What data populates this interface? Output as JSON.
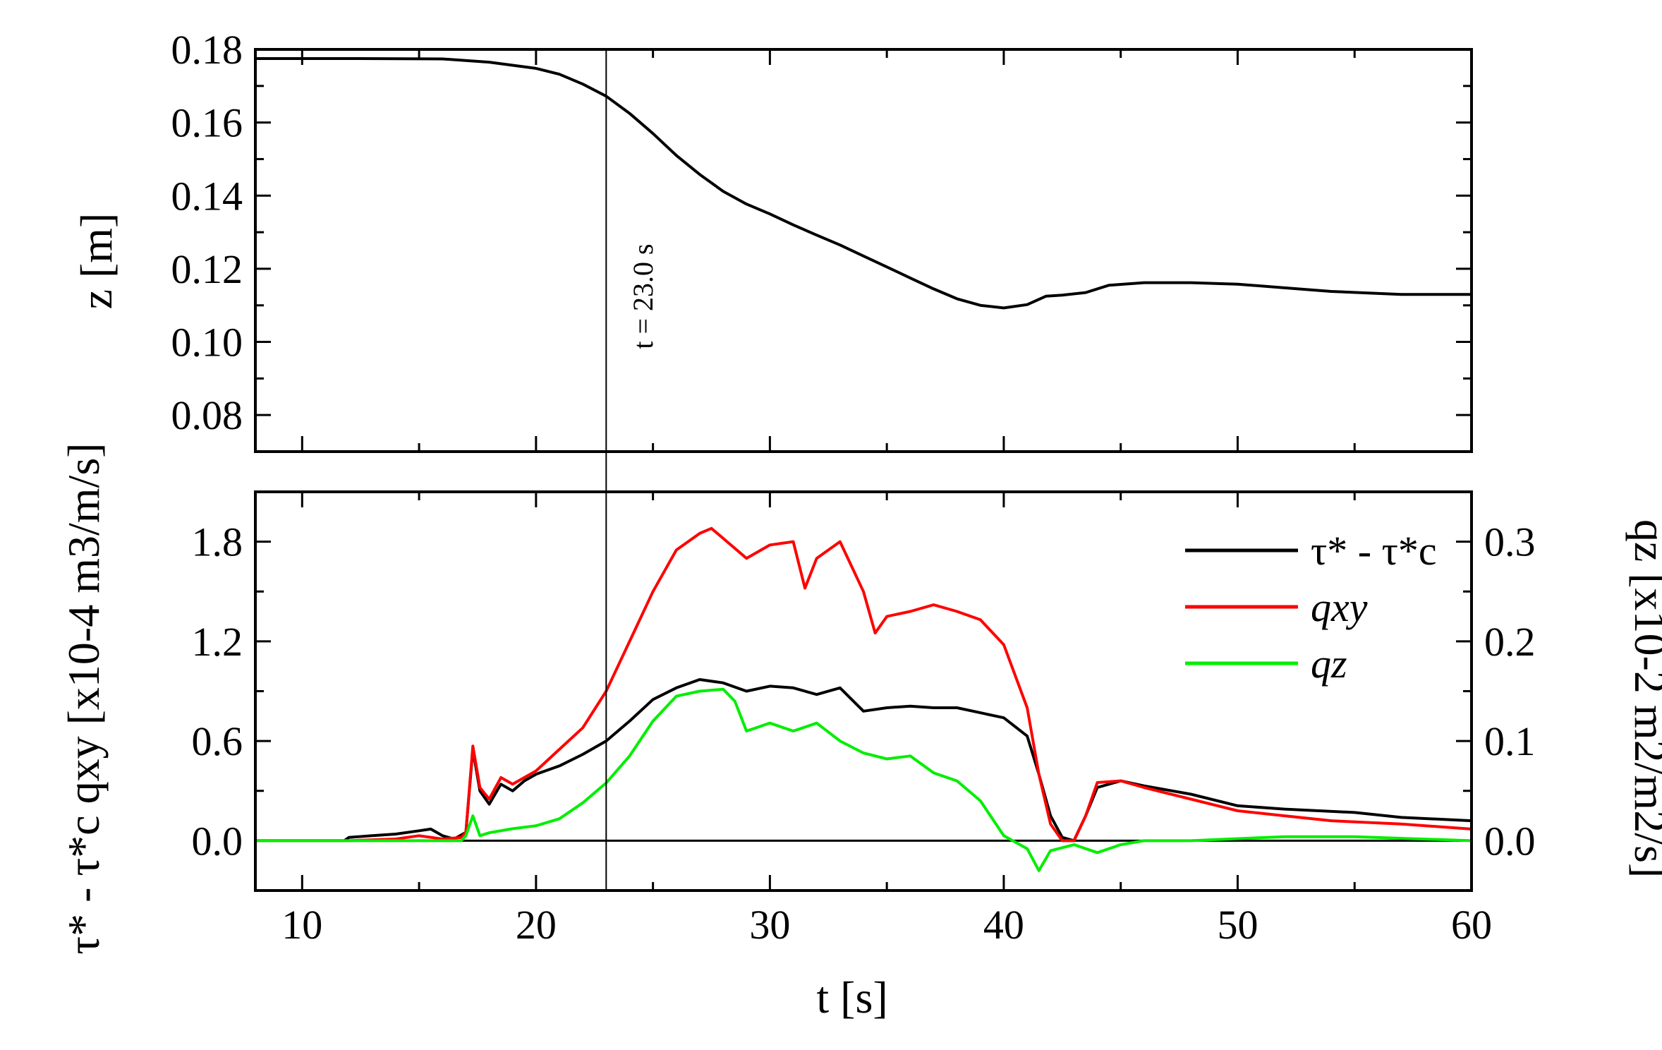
{
  "chart_data": [
    {
      "panel": "top",
      "type": "line",
      "ylabel": "z [m]",
      "ylim": [
        0.07,
        0.18
      ],
      "yticks": [
        "0.08",
        "0.10",
        "0.12",
        "0.14",
        "0.16",
        "0.18"
      ],
      "xlim": [
        8,
        60
      ],
      "annotation": {
        "text": "t = 23.0 s",
        "x": 23.0
      },
      "series": [
        {
          "name": "z",
          "color": "#000000",
          "points": [
            [
              8,
              0.1775
            ],
            [
              12,
              0.1775
            ],
            [
              16,
              0.1774
            ],
            [
              18,
              0.1765
            ],
            [
              20,
              0.1748
            ],
            [
              21,
              0.1732
            ],
            [
              22,
              0.1705
            ],
            [
              23,
              0.1672
            ],
            [
              24,
              0.1625
            ],
            [
              25,
              0.157
            ],
            [
              26,
              0.151
            ],
            [
              27,
              0.1458
            ],
            [
              28,
              0.1412
            ],
            [
              29,
              0.1377
            ],
            [
              30,
              0.135
            ],
            [
              31,
              0.132
            ],
            [
              32,
              0.1292
            ],
            [
              33,
              0.1265
            ],
            [
              34,
              0.1235
            ],
            [
              35,
              0.1205
            ],
            [
              36,
              0.1175
            ],
            [
              37,
              0.1145
            ],
            [
              38,
              0.1118
            ],
            [
              39,
              0.11
            ],
            [
              40,
              0.1093
            ],
            [
              41,
              0.1102
            ],
            [
              41.8,
              0.1125
            ],
            [
              42.5,
              0.1128
            ],
            [
              43.5,
              0.1135
            ],
            [
              44.5,
              0.1155
            ],
            [
              46,
              0.1162
            ],
            [
              48,
              0.1162
            ],
            [
              50,
              0.1158
            ],
            [
              52,
              0.1148
            ],
            [
              54,
              0.1138
            ],
            [
              57,
              0.113
            ],
            [
              60,
              0.113
            ]
          ]
        }
      ]
    },
    {
      "panel": "bottom",
      "type": "line",
      "xlabel": "t [s]",
      "xticks": [
        "10",
        "20",
        "30",
        "40",
        "50",
        "60"
      ],
      "xlim": [
        8,
        60
      ],
      "ylabel_left": "τ* - τ*c  qxy [x10-4 m3/m/s]",
      "ylim_left": [
        -0.3,
        2.1
      ],
      "yticks_left": [
        "0.0",
        "0.6",
        "1.2",
        "1.8"
      ],
      "ylabel_right": "qz [x10-2 m2/m2/s]",
      "ylim_right": [
        -0.05,
        0.35
      ],
      "yticks_right": [
        "0.0",
        "0.1",
        "0.2",
        "0.3"
      ],
      "legend": [
        {
          "label": "τ* - τ*c",
          "color": "#000000"
        },
        {
          "label": "qxy",
          "color": "#ff0000"
        },
        {
          "label": "qz",
          "color": "#00ee00"
        }
      ],
      "series": [
        {
          "name": "τ* - τ*c",
          "axis": "left",
          "color": "#000000",
          "points": [
            [
              8,
              0
            ],
            [
              11.8,
              0
            ],
            [
              12,
              0.02
            ],
            [
              13,
              0.03
            ],
            [
              14,
              0.04
            ],
            [
              15,
              0.06
            ],
            [
              15.5,
              0.07
            ],
            [
              16,
              0.03
            ],
            [
              16.5,
              0.01
            ],
            [
              17,
              0.05
            ],
            [
              17.3,
              0.55
            ],
            [
              17.6,
              0.3
            ],
            [
              18,
              0.22
            ],
            [
              18.5,
              0.34
            ],
            [
              19,
              0.3
            ],
            [
              19.5,
              0.36
            ],
            [
              20,
              0.4
            ],
            [
              21,
              0.45
            ],
            [
              22,
              0.52
            ],
            [
              23,
              0.6
            ],
            [
              24,
              0.72
            ],
            [
              25,
              0.85
            ],
            [
              26,
              0.92
            ],
            [
              27,
              0.97
            ],
            [
              28,
              0.95
            ],
            [
              29,
              0.9
            ],
            [
              30,
              0.93
            ],
            [
              31,
              0.92
            ],
            [
              32,
              0.88
            ],
            [
              33,
              0.92
            ],
            [
              34,
              0.78
            ],
            [
              35,
              0.8
            ],
            [
              36,
              0.81
            ],
            [
              37,
              0.8
            ],
            [
              38,
              0.8
            ],
            [
              39,
              0.77
            ],
            [
              40,
              0.74
            ],
            [
              41,
              0.63
            ],
            [
              41.5,
              0.4
            ],
            [
              42,
              0.15
            ],
            [
              42.5,
              0.02
            ],
            [
              43,
              0.0
            ],
            [
              43.5,
              0.15
            ],
            [
              44,
              0.32
            ],
            [
              45,
              0.36
            ],
            [
              46,
              0.33
            ],
            [
              48,
              0.28
            ],
            [
              50,
              0.21
            ],
            [
              52,
              0.19
            ],
            [
              55,
              0.17
            ],
            [
              57,
              0.14
            ],
            [
              60,
              0.12
            ]
          ]
        },
        {
          "name": "qxy",
          "axis": "left",
          "color": "#ff0000",
          "points": [
            [
              8,
              0
            ],
            [
              12,
              0
            ],
            [
              14,
              0.01
            ],
            [
              15,
              0.03
            ],
            [
              16,
              0.01
            ],
            [
              16.8,
              0.02
            ],
            [
              17,
              0.05
            ],
            [
              17.3,
              0.57
            ],
            [
              17.6,
              0.32
            ],
            [
              18,
              0.25
            ],
            [
              18.5,
              0.38
            ],
            [
              19,
              0.34
            ],
            [
              19.5,
              0.38
            ],
            [
              20,
              0.42
            ],
            [
              21,
              0.55
            ],
            [
              22,
              0.68
            ],
            [
              23,
              0.9
            ],
            [
              24,
              1.2
            ],
            [
              25,
              1.5
            ],
            [
              26,
              1.75
            ],
            [
              27,
              1.85
            ],
            [
              27.5,
              1.88
            ],
            [
              28,
              1.82
            ],
            [
              29,
              1.7
            ],
            [
              30,
              1.78
            ],
            [
              31,
              1.8
            ],
            [
              31.5,
              1.52
            ],
            [
              32,
              1.7
            ],
            [
              33,
              1.8
            ],
            [
              34,
              1.5
            ],
            [
              34.5,
              1.25
            ],
            [
              35,
              1.35
            ],
            [
              36,
              1.38
            ],
            [
              37,
              1.42
            ],
            [
              38,
              1.38
            ],
            [
              39,
              1.33
            ],
            [
              40,
              1.18
            ],
            [
              41,
              0.8
            ],
            [
              41.5,
              0.4
            ],
            [
              42,
              0.1
            ],
            [
              42.5,
              0.0
            ],
            [
              43,
              0.0
            ],
            [
              43.5,
              0.15
            ],
            [
              44,
              0.35
            ],
            [
              45,
              0.36
            ],
            [
              46,
              0.32
            ],
            [
              48,
              0.25
            ],
            [
              50,
              0.18
            ],
            [
              52,
              0.15
            ],
            [
              54,
              0.12
            ],
            [
              57,
              0.1
            ],
            [
              60,
              0.07
            ]
          ]
        },
        {
          "name": "qz",
          "axis": "right",
          "color": "#00ee00",
          "points": [
            [
              8,
              0
            ],
            [
              16.8,
              0
            ],
            [
              17,
              0.005
            ],
            [
              17.3,
              0.025
            ],
            [
              17.6,
              0.005
            ],
            [
              18,
              0.008
            ],
            [
              19,
              0.012
            ],
            [
              20,
              0.015
            ],
            [
              21,
              0.022
            ],
            [
              22,
              0.038
            ],
            [
              23,
              0.058
            ],
            [
              24,
              0.085
            ],
            [
              25,
              0.12
            ],
            [
              26,
              0.145
            ],
            [
              27,
              0.15
            ],
            [
              28,
              0.152
            ],
            [
              28.5,
              0.14
            ],
            [
              29,
              0.11
            ],
            [
              30,
              0.118
            ],
            [
              31,
              0.11
            ],
            [
              32,
              0.118
            ],
            [
              33,
              0.1
            ],
            [
              34,
              0.088
            ],
            [
              35,
              0.082
            ],
            [
              36,
              0.085
            ],
            [
              37,
              0.068
            ],
            [
              38,
              0.06
            ],
            [
              39,
              0.04
            ],
            [
              40,
              0.005
            ],
            [
              41,
              -0.008
            ],
            [
              41.5,
              -0.03
            ],
            [
              42,
              -0.01
            ],
            [
              43,
              -0.004
            ],
            [
              44,
              -0.012
            ],
            [
              45,
              -0.004
            ],
            [
              46,
              0.0
            ],
            [
              48,
              0.0
            ],
            [
              50,
              0.002
            ],
            [
              52,
              0.004
            ],
            [
              55,
              0.004
            ],
            [
              60,
              0.0
            ]
          ]
        }
      ]
    }
  ]
}
